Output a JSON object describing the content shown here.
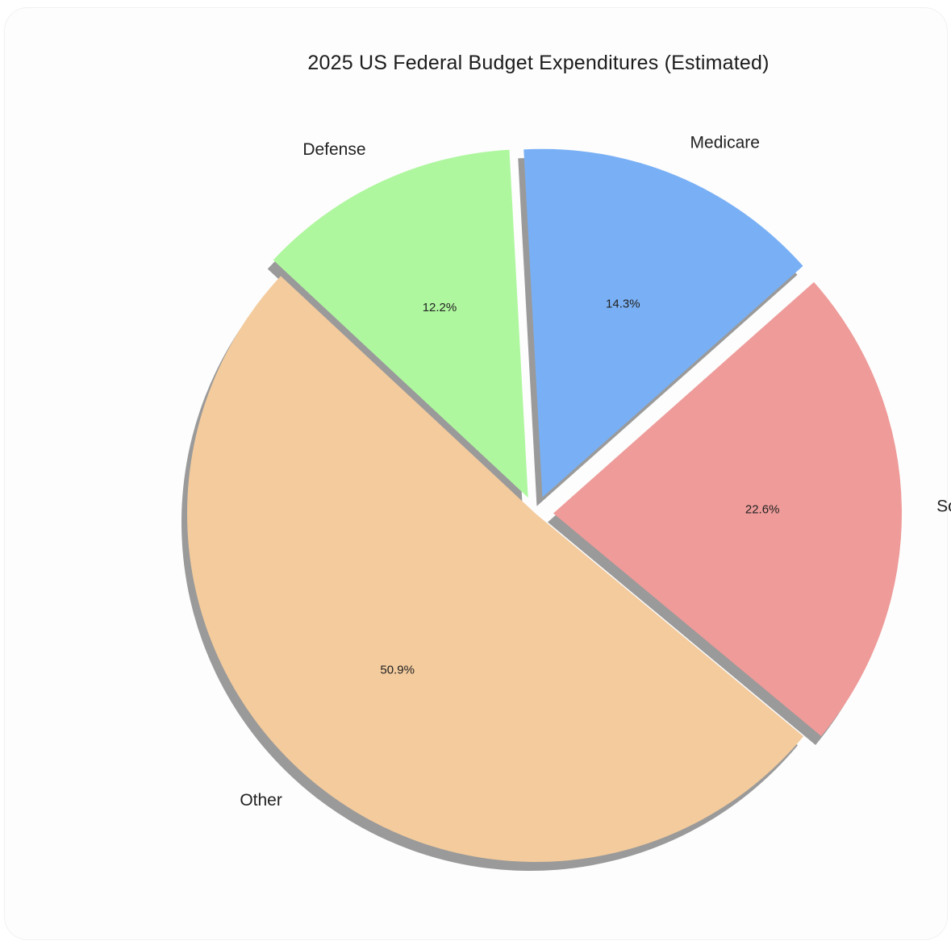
{
  "chart_data": {
    "type": "pie",
    "title": "2025 US Federal Budget Expenditures (Estimated)",
    "slices": [
      {
        "label": "Other",
        "value": 50.9,
        "pct_text": "50.9%",
        "color": "#f3cb9d",
        "exploded": false
      },
      {
        "label": "Social Security",
        "value": 22.6,
        "pct_text": "22.6%",
        "color": "#ee9b99",
        "exploded": true
      },
      {
        "label": "Medicare",
        "value": 14.3,
        "pct_text": "14.3%",
        "color": "#79b0f5",
        "exploded": true
      },
      {
        "label": "Defense",
        "value": 12.2,
        "pct_text": "12.2%",
        "color": "#aff79f",
        "exploded": true
      }
    ],
    "shadow": true,
    "legend": "none"
  }
}
